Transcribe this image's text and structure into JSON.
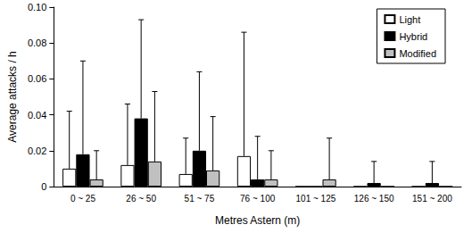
{
  "chart_data": {
    "type": "bar",
    "x_label": "Metres Astern (m)",
    "y_label": "Average attacks / h",
    "categories": [
      "0 ~ 25",
      "26 ~ 50",
      "51 ~ 75",
      "76 ~ 100",
      "101 ~ 125",
      "126 ~ 150",
      "151 ~ 200"
    ],
    "series": [
      {
        "name": "Light",
        "color": "#ffffff",
        "values": [
          0.01,
          0.012,
          0.007,
          0.017,
          0,
          0,
          0
        ],
        "errors": [
          0.032,
          0.034,
          0.02,
          0.069,
          null,
          null,
          null
        ]
      },
      {
        "name": "Hybrid",
        "color": "#000000",
        "values": [
          0.018,
          0.038,
          0.02,
          0.004,
          0,
          0.002,
          0.002
        ],
        "errors": [
          0.052,
          0.055,
          0.044,
          0.024,
          null,
          0.012,
          0.012
        ]
      },
      {
        "name": "Modified",
        "color": "#c0c0c0",
        "values": [
          0.004,
          0.014,
          0.009,
          0.004,
          0.004,
          0,
          0
        ],
        "errors": [
          0.016,
          0.039,
          0.03,
          0.016,
          0.023,
          null,
          null
        ]
      }
    ],
    "ylim": [
      0,
      0.1
    ],
    "yticks": [
      0,
      0.02,
      0.04,
      0.06,
      0.08,
      {
        "value": 0.1,
        "label": "0.10"
      }
    ],
    "grid": false,
    "legend": "upper right"
  }
}
